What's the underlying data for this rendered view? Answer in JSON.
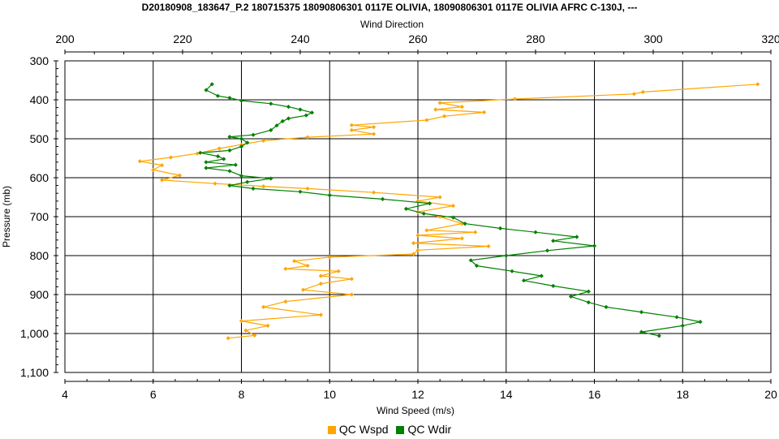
{
  "chart_data": {
    "type": "line",
    "title": "D20180908_183647_P.2 180715375 18090806301 0117E OLIVIA, 18090806301 0117E OLIVIA AFRC C-130J, ---",
    "top_axis": {
      "label": "Wind Direction",
      "range": [
        200,
        320
      ],
      "ticks": [
        200,
        220,
        240,
        260,
        280,
        300,
        320
      ],
      "tick_labels": [
        "200",
        "220",
        "240",
        "260",
        "280",
        "300",
        "320"
      ]
    },
    "bottom_axis": {
      "label": "Wind Speed (m/s)",
      "range": [
        4,
        20
      ],
      "ticks": [
        4,
        6,
        8,
        10,
        12,
        14,
        16,
        18,
        20
      ],
      "tick_labels": [
        "4",
        "6",
        "8",
        "10",
        "12",
        "14",
        "16",
        "18",
        "20"
      ]
    },
    "y_axis": {
      "label": "Pressure (mb)",
      "range": [
        300,
        1100
      ],
      "inverted": true,
      "ticks": [
        300,
        400,
        500,
        600,
        700,
        800,
        900,
        1000,
        1100
      ],
      "tick_labels": [
        "300",
        "400",
        "500",
        "600",
        "700",
        "800",
        "900",
        "1,000",
        "1,100"
      ]
    },
    "grid": true,
    "legend_position": "bottom-center",
    "series": [
      {
        "name": "QC Wspd",
        "axis": "bottom",
        "color": "#FFA500",
        "points": [
          [
            19.7,
            360
          ],
          [
            17.1,
            380
          ],
          [
            16.9,
            385
          ],
          [
            14.2,
            398
          ],
          [
            12.5,
            408
          ],
          [
            13.0,
            418
          ],
          [
            12.4,
            425
          ],
          [
            13.5,
            432
          ],
          [
            12.6,
            442
          ],
          [
            12.2,
            452
          ],
          [
            10.5,
            465
          ],
          [
            11.0,
            470
          ],
          [
            10.5,
            478
          ],
          [
            11.0,
            488
          ],
          [
            9.5,
            496
          ],
          [
            8.5,
            505
          ],
          [
            8.0,
            515
          ],
          [
            7.5,
            525
          ],
          [
            7.0,
            538
          ],
          [
            6.4,
            548
          ],
          [
            5.7,
            558
          ],
          [
            6.2,
            568
          ],
          [
            6.0,
            580
          ],
          [
            6.6,
            594
          ],
          [
            6.2,
            606
          ],
          [
            7.4,
            615
          ],
          [
            8.5,
            622
          ],
          [
            9.5,
            628
          ],
          [
            11.0,
            638
          ],
          [
            12.5,
            650
          ],
          [
            12.0,
            660
          ],
          [
            12.8,
            672
          ],
          [
            12.0,
            688
          ],
          [
            12.5,
            700
          ],
          [
            13.0,
            718
          ],
          [
            12.2,
            735
          ],
          [
            13.3,
            740
          ],
          [
            12.0,
            748
          ],
          [
            13.0,
            756
          ],
          [
            11.9,
            768
          ],
          [
            13.6,
            776
          ],
          [
            12.0,
            786
          ],
          [
            11.9,
            796
          ],
          [
            10.0,
            804
          ],
          [
            9.2,
            814
          ],
          [
            9.5,
            826
          ],
          [
            9.0,
            834
          ],
          [
            10.2,
            840
          ],
          [
            9.8,
            852
          ],
          [
            10.5,
            860
          ],
          [
            9.8,
            872
          ],
          [
            9.4,
            888
          ],
          [
            10.5,
            900
          ],
          [
            9.0,
            918
          ],
          [
            8.5,
            932
          ],
          [
            9.8,
            952
          ],
          [
            8.0,
            968
          ],
          [
            8.6,
            980
          ],
          [
            8.1,
            992
          ],
          [
            8.3,
            1005
          ],
          [
            7.7,
            1012
          ]
        ]
      },
      {
        "name": "QC Wdir",
        "axis": "top",
        "color": "#008000",
        "points": [
          [
            225,
            360
          ],
          [
            224,
            375
          ],
          [
            226,
            390
          ],
          [
            228,
            395
          ],
          [
            230,
            402
          ],
          [
            235,
            410
          ],
          [
            238,
            418
          ],
          [
            240,
            425
          ],
          [
            242,
            433
          ],
          [
            241,
            440
          ],
          [
            238,
            448
          ],
          [
            237,
            455
          ],
          [
            236,
            466
          ],
          [
            235,
            478
          ],
          [
            232,
            490
          ],
          [
            228,
            495
          ],
          [
            230,
            500
          ],
          [
            231,
            510
          ],
          [
            230,
            520
          ],
          [
            228,
            530
          ],
          [
            223,
            536
          ],
          [
            226,
            545
          ],
          [
            227,
            552
          ],
          [
            224,
            560
          ],
          [
            229,
            567
          ],
          [
            224,
            575
          ],
          [
            228,
            583
          ],
          [
            230,
            595
          ],
          [
            235,
            602
          ],
          [
            231,
            611
          ],
          [
            228,
            620
          ],
          [
            232,
            628
          ],
          [
            240,
            636
          ],
          [
            245,
            645
          ],
          [
            254,
            655
          ],
          [
            262,
            666
          ],
          [
            258,
            680
          ],
          [
            261,
            692
          ],
          [
            266,
            702
          ],
          [
            268,
            718
          ],
          [
            274,
            730
          ],
          [
            280,
            740
          ],
          [
            287,
            752
          ],
          [
            283,
            762
          ],
          [
            290,
            775
          ],
          [
            282,
            787
          ],
          [
            275,
            800
          ],
          [
            269,
            812
          ],
          [
            270,
            826
          ],
          [
            276,
            840
          ],
          [
            281,
            852
          ],
          [
            278,
            864
          ],
          [
            283,
            878
          ],
          [
            289,
            892
          ],
          [
            286,
            905
          ],
          [
            289,
            920
          ],
          [
            292,
            932
          ],
          [
            298,
            945
          ],
          [
            304,
            958
          ],
          [
            308,
            970
          ],
          [
            305,
            980
          ],
          [
            298,
            996
          ],
          [
            301,
            1006
          ]
        ]
      }
    ]
  }
}
